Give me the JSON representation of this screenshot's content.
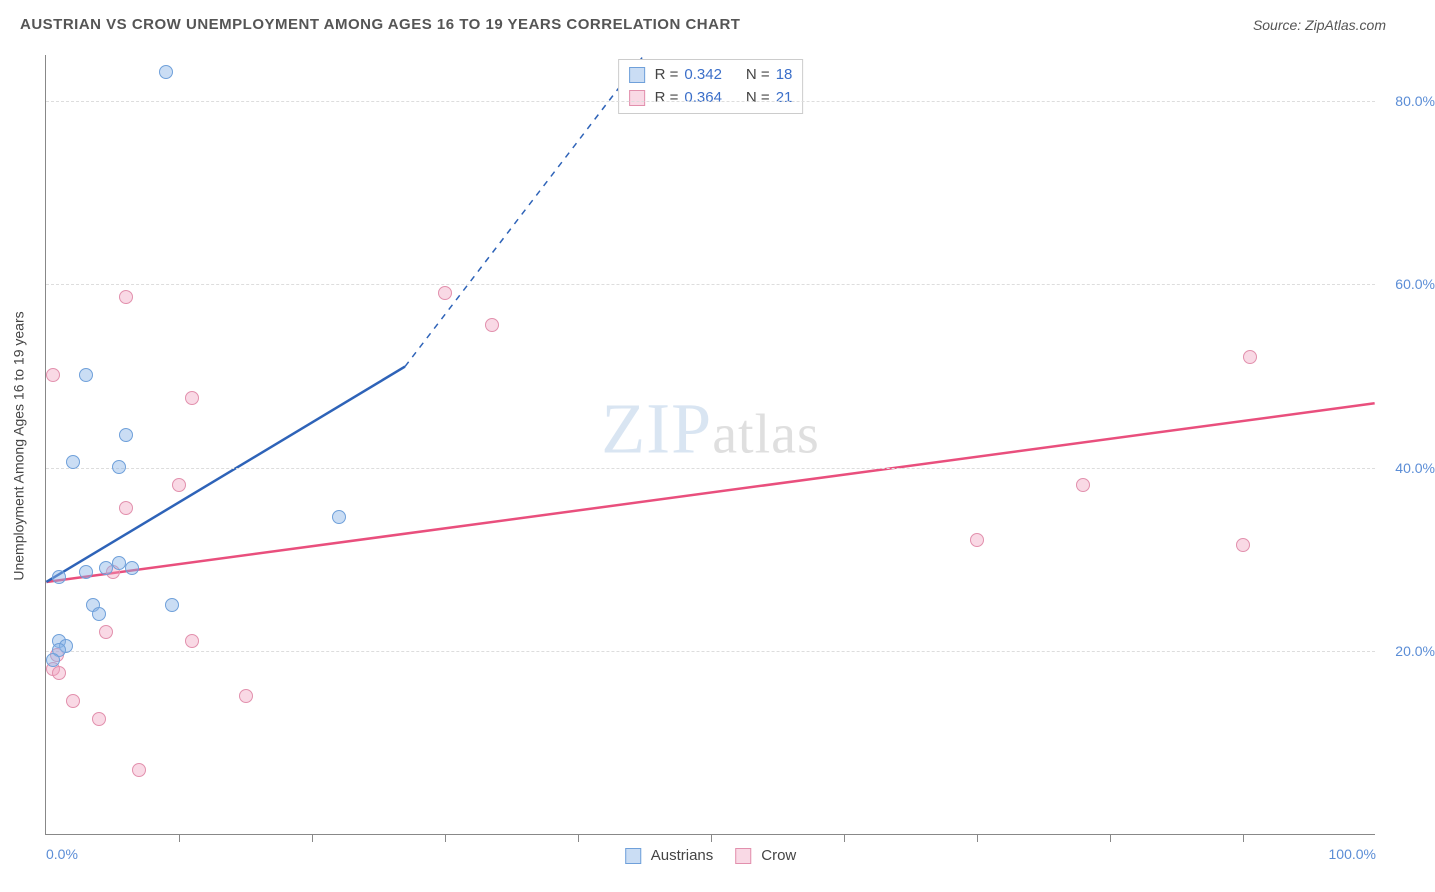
{
  "title": "AUSTRIAN VS CROW UNEMPLOYMENT AMONG AGES 16 TO 19 YEARS CORRELATION CHART",
  "source": "Source: ZipAtlas.com",
  "y_axis_label": "Unemployment Among Ages 16 to 19 years",
  "watermark": {
    "part1": "ZIP",
    "part2": "atlas"
  },
  "chart": {
    "type": "scatter",
    "xlim": [
      0,
      100
    ],
    "ylim": [
      0,
      85
    ],
    "y_ticks": [
      20,
      40,
      60,
      80
    ],
    "y_tick_labels": [
      "20.0%",
      "40.0%",
      "60.0%",
      "80.0%"
    ],
    "x_ticks": [
      0,
      10,
      20,
      30,
      40,
      50,
      60,
      70,
      80,
      90,
      100
    ],
    "x_tick_labels": {
      "0": "0.0%",
      "100": "100.0%"
    },
    "grid_color": "#dddddd",
    "axis_color": "#888888",
    "background_color": "#ffffff",
    "tick_label_color": "#5b8dd6",
    "point_radius": 7
  },
  "series": {
    "austrians": {
      "label": "Austrians",
      "fill": "rgba(137,179,230,0.45)",
      "stroke": "#6fa0da",
      "line_color": "#2e63b8",
      "R": "0.342",
      "N": "18",
      "points": [
        [
          9.0,
          83.0
        ],
        [
          3.0,
          50.0
        ],
        [
          6.0,
          43.5
        ],
        [
          5.5,
          40.0
        ],
        [
          2.0,
          40.5
        ],
        [
          22.0,
          34.5
        ],
        [
          5.5,
          29.5
        ],
        [
          4.5,
          29.0
        ],
        [
          6.5,
          29.0
        ],
        [
          9.5,
          25.0
        ],
        [
          3.5,
          25.0
        ],
        [
          4.0,
          24.0
        ],
        [
          1.0,
          21.0
        ],
        [
          1.5,
          20.5
        ],
        [
          1.0,
          20.0
        ],
        [
          0.5,
          19.0
        ],
        [
          1.0,
          28.0
        ],
        [
          3.0,
          28.5
        ]
      ],
      "trend": {
        "x1": 0,
        "y1": 27.5,
        "x2": 27,
        "y2": 51.0
      },
      "trend_dash": {
        "x1": 27,
        "y1": 51.0,
        "x2": 45,
        "y2": 85.0
      }
    },
    "crow": {
      "label": "Crow",
      "fill": "rgba(240,160,190,0.40)",
      "stroke": "#e290ad",
      "line_color": "#e94f7d",
      "R": "0.364",
      "N": "21",
      "points": [
        [
          6.0,
          58.5
        ],
        [
          30.0,
          59.0
        ],
        [
          33.5,
          55.5
        ],
        [
          11.0,
          47.5
        ],
        [
          90.5,
          52.0
        ],
        [
          78.0,
          38.0
        ],
        [
          70.0,
          32.0
        ],
        [
          90.0,
          31.5
        ],
        [
          10.0,
          38.0
        ],
        [
          6.0,
          35.5
        ],
        [
          0.5,
          50.0
        ],
        [
          5.0,
          28.5
        ],
        [
          4.5,
          22.0
        ],
        [
          11.0,
          21.0
        ],
        [
          2.0,
          14.5
        ],
        [
          4.0,
          12.5
        ],
        [
          7.0,
          7.0
        ],
        [
          15.0,
          15.0
        ],
        [
          0.5,
          18.0
        ],
        [
          0.8,
          19.5
        ],
        [
          1.0,
          17.5
        ]
      ],
      "trend": {
        "x1": 0,
        "y1": 27.5,
        "x2": 100,
        "y2": 47.0
      }
    }
  },
  "stats_box": {
    "rows": [
      {
        "swatch_series": "austrians",
        "r_label": "R =",
        "n_label": "N ="
      },
      {
        "swatch_series": "crow",
        "r_label": "R =",
        "n_label": "N ="
      }
    ]
  },
  "legend_order": [
    "austrians",
    "crow"
  ]
}
